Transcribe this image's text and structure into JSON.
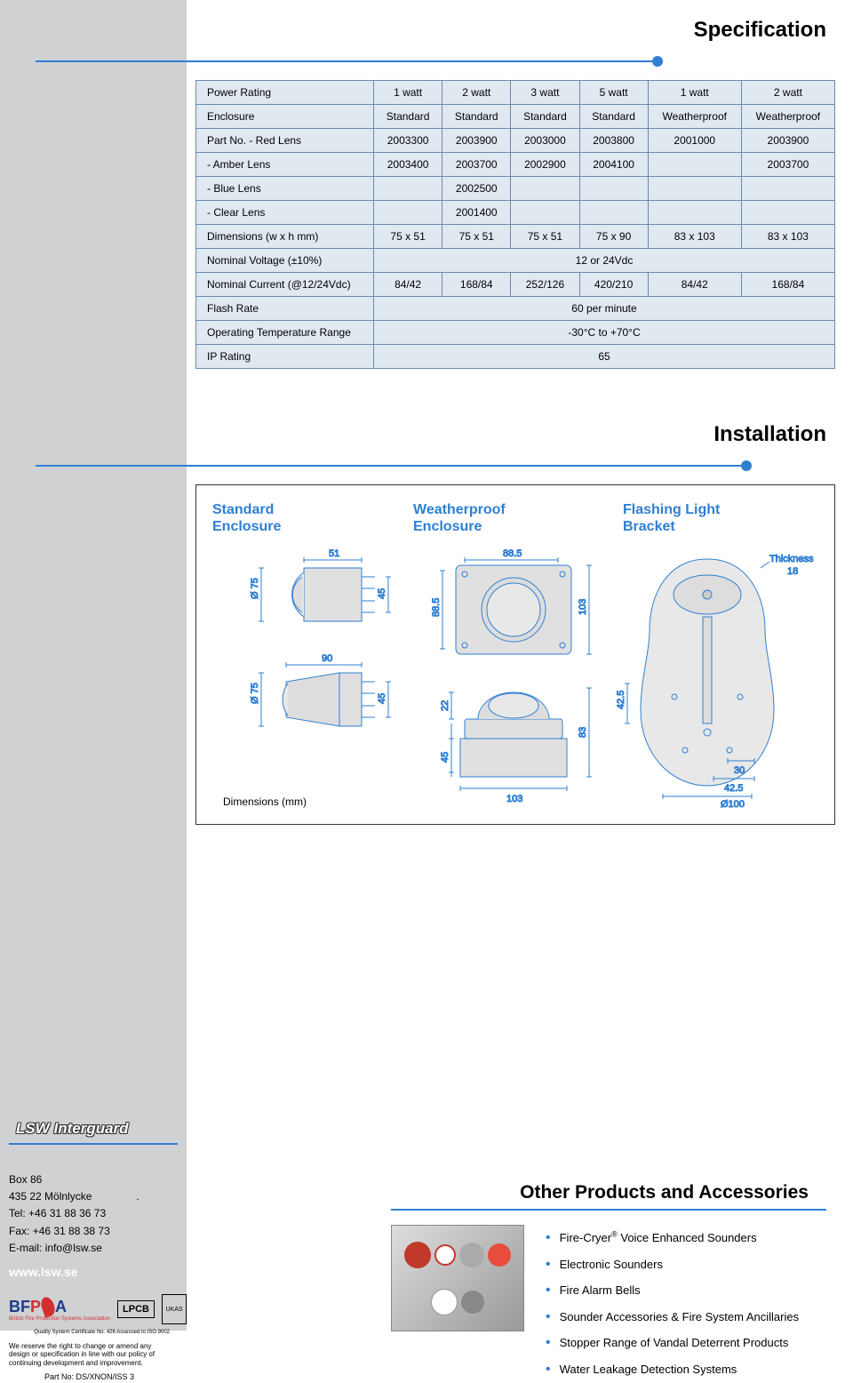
{
  "headings": {
    "specification": "Specification",
    "installation": "Installation",
    "otherProducts": "Other Products and Accessories"
  },
  "specTable": {
    "rows": [
      {
        "label": "Power Rating",
        "cells": [
          "1 watt",
          "2 watt",
          "3 watt",
          "5 watt",
          "1 watt",
          "2 watt"
        ]
      },
      {
        "label": "Enclosure",
        "cells": [
          "Standard",
          "Standard",
          "Standard",
          "Standard",
          "Weatherproof",
          "Weatherproof"
        ]
      },
      {
        "label": "Part No. - Red Lens",
        "cells": [
          "2003300",
          "2003900",
          "2003000",
          "2003800",
          "2001000",
          "2003900"
        ]
      },
      {
        "label": "- Amber Lens",
        "indent": true,
        "cells": [
          "2003400",
          "2003700",
          "2002900",
          "2004100",
          "",
          "2003700"
        ]
      },
      {
        "label": "- Blue Lens",
        "indent": true,
        "cells": [
          "",
          "2002500",
          "",
          "",
          "",
          ""
        ]
      },
      {
        "label": "- Clear Lens",
        "indent": true,
        "cells": [
          "",
          "2001400",
          "",
          "",
          "",
          ""
        ]
      },
      {
        "label": "Dimensions (w x h mm)",
        "cells": [
          "75 x 51",
          "75 x 51",
          "75 x 51",
          "75 x 90",
          "83 x 103",
          "83 x 103"
        ]
      },
      {
        "label": "Nominal Voltage (±10%)",
        "cells": [
          {
            "span": 6,
            "text": "12 or 24Vdc"
          }
        ]
      },
      {
        "label": "Nominal Current (@12/24Vdc)",
        "cells": [
          "84/42",
          "168/84",
          "252/126",
          "420/210",
          "84/42",
          "168/84"
        ]
      },
      {
        "label": "Flash Rate",
        "cells": [
          {
            "span": 6,
            "text": "60 per minute"
          }
        ]
      },
      {
        "label": "Operating Temperature Range",
        "cells": [
          {
            "span": 6,
            "text": "-30°C to +70°C"
          }
        ]
      },
      {
        "label": "IP Rating",
        "cells": [
          {
            "span": 6,
            "text": "65"
          }
        ]
      }
    ]
  },
  "installation": {
    "col1": "Standard\nEnclosure",
    "col2": "Weatherproof\nEnclosure",
    "col3": "Flashing Light\nBracket",
    "dimNote": "Dimensions (mm)",
    "diagrams": {
      "stroke": "#2f7fd2",
      "fill": "#e0e0e0",
      "std_top_w": "51",
      "std_top_dia": "Ø 75",
      "std_top_mount": "45",
      "std_btm_w": "90",
      "std_btm_dia": "Ø 75",
      "std_btm_mount": "45",
      "wp_top_w": "88.5",
      "wp_top_h": "88.5",
      "wp_top_plate": "103",
      "wp_btm_stub": "22",
      "wp_btm_mount": "45",
      "wp_btm_h": "83",
      "wp_btm_base_w": "103",
      "brkt_thick_lbl": "Thickness",
      "brkt_thick_val": "18",
      "brkt_h1": "42.5",
      "brkt_w1": "30",
      "brkt_w2": "42.5",
      "brkt_base": "Ø100"
    }
  },
  "company": {
    "name": "LSW Interguard",
    "address_line1": "Box 86",
    "address_line2": "435 22 Mölnlycke",
    "tel_label": "Tel:",
    "tel": "+46   31 88 36 73",
    "fax_label": "Fax:",
    "fax": "+46   31 88 38 73",
    "email_label": "E-mail:",
    "email": "info@lsw.se",
    "website": "www.lsw.se"
  },
  "logos": {
    "bfpsa_bf": "BF",
    "bfpsa_p": "P",
    "bfpsa_a": "A",
    "bfpsa_sub": "British Fire Protection Systems Association",
    "lpcb": "LPCB",
    "ukas": "UKAS"
  },
  "disclaimer": {
    "line": "We reserve the right to change or amend any design or specification in line with our policy of continuing development and improvement.",
    "partno": "Part No: DS/XNON/ISS 3",
    "qualitynote": "Quality System Certificate No. 426\nAssessed to ISO 9002"
  },
  "products": [
    "Fire-Cryer® Voice Enhanced Sounders",
    "Electronic Sounders",
    "Fire Alarm Bells",
    "Sounder Accessories & Fire System Ancillaries",
    "Stopper Range of Vandal Deterrent Products",
    "Water Leakage Detection Systems"
  ]
}
